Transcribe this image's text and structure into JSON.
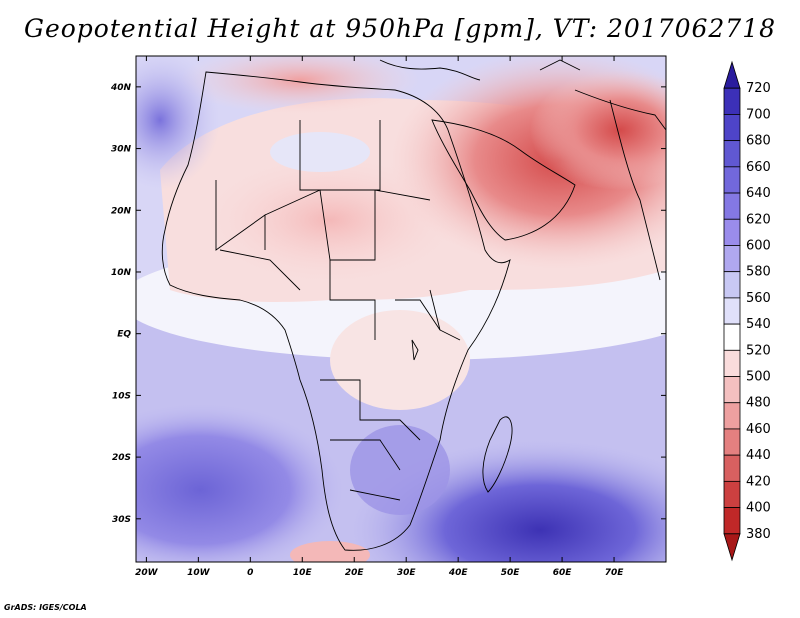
{
  "title": "Geopotential Height at 950hPa [gpm], VT: 2017062718",
  "credit": "GrADS: IGES/COLA",
  "map": {
    "variable": "Geopotential Height",
    "level": "950hPa",
    "units": "gpm",
    "valid_time": "2017062718",
    "lon_labels": [
      "20W",
      "10W",
      "0",
      "10E",
      "20E",
      "30E",
      "40E",
      "50E",
      "60E",
      "70E"
    ],
    "lat_labels": [
      "40N",
      "30N",
      "20N",
      "10N",
      "EQ",
      "10S",
      "20S",
      "30S"
    ],
    "lon_range": [
      -22,
      80
    ],
    "lat_range": [
      -37,
      45
    ]
  },
  "colorbar": {
    "labels": [
      "720",
      "700",
      "680",
      "660",
      "640",
      "620",
      "600",
      "580",
      "560",
      "540",
      "520",
      "500",
      "480",
      "460",
      "440",
      "420",
      "400",
      "380"
    ],
    "colors": [
      "#2a1c9e",
      "#3c30b8",
      "#4e44c8",
      "#6058d2",
      "#7268dc",
      "#8478e4",
      "#9a8cec",
      "#b0a8f0",
      "#c8c8f4",
      "#e0e0fa",
      "#ffffff",
      "#fadcdc",
      "#f4c0c0",
      "#eea0a0",
      "#e48080",
      "#d86060",
      "#cc4040",
      "#c02828",
      "#a81818"
    ]
  }
}
